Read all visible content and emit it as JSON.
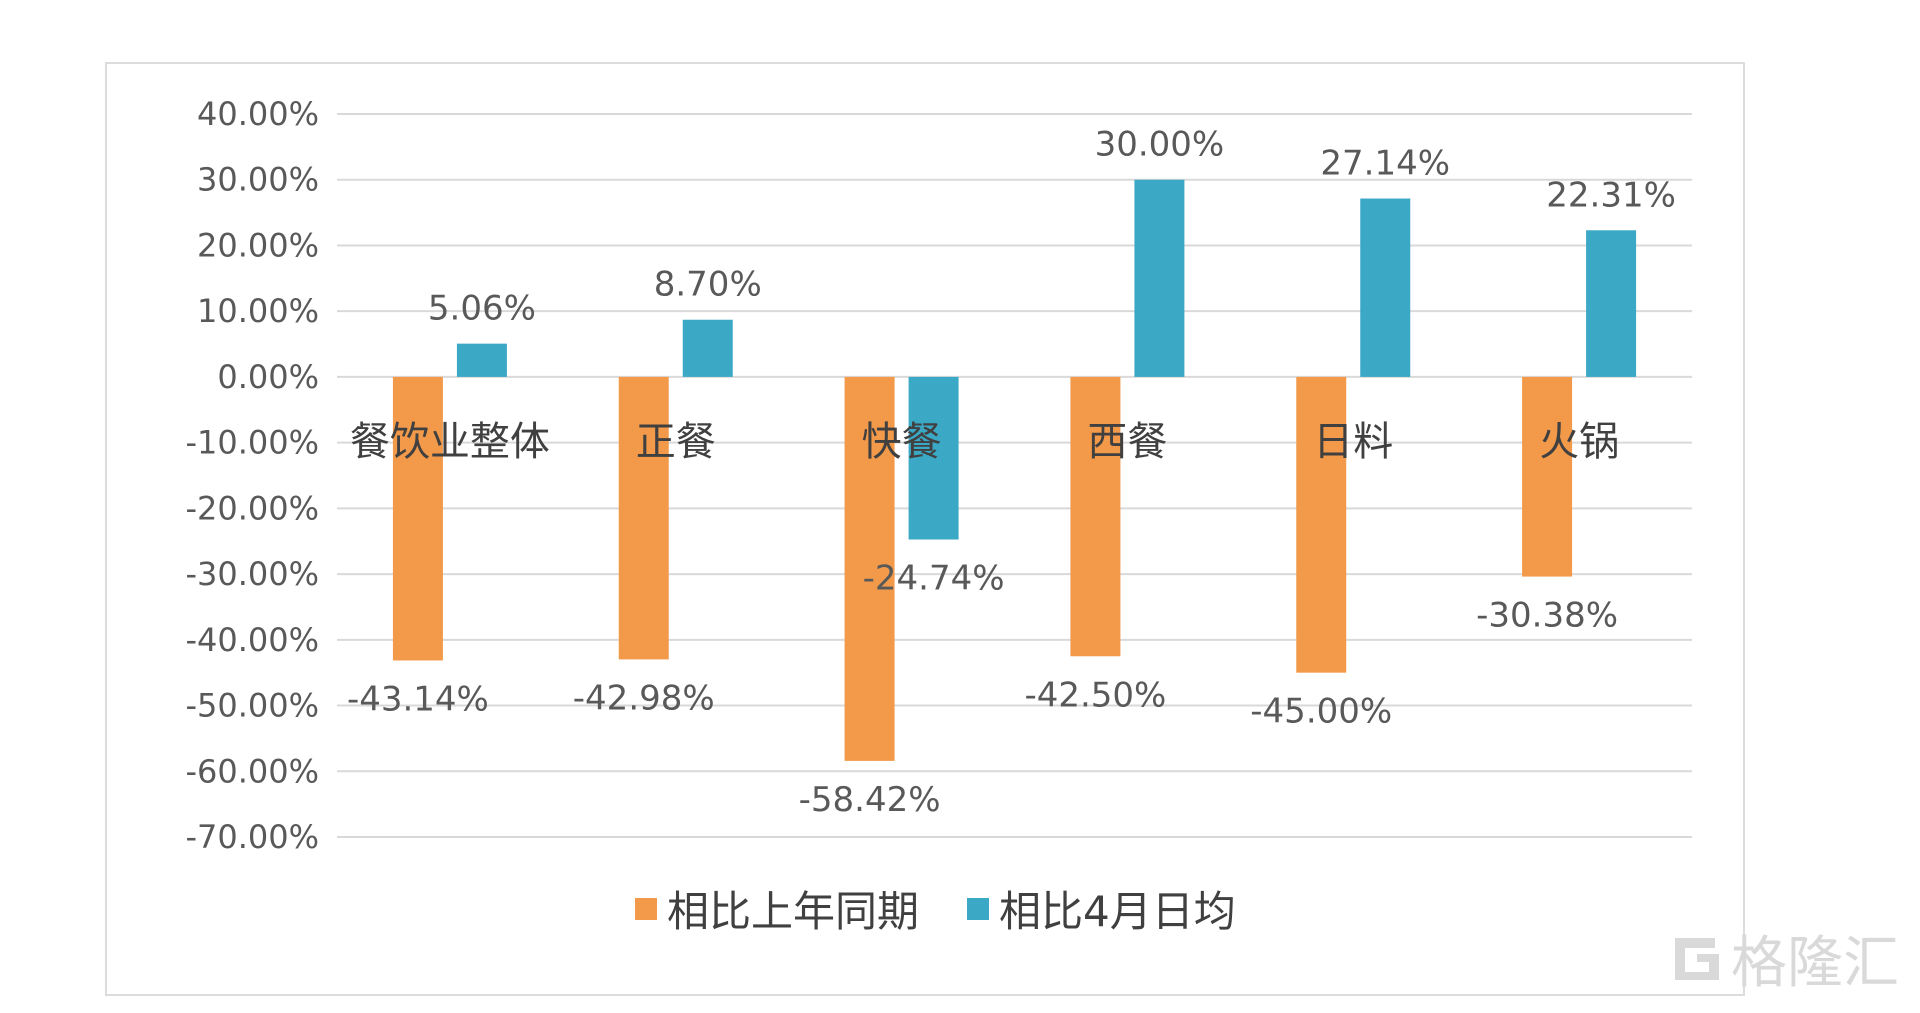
{
  "chart_data": {
    "type": "bar",
    "categories": [
      "餐饮业整体",
      "正餐",
      "快餐",
      "西餐",
      "日料",
      "火锅"
    ],
    "series": [
      {
        "name": "相比上年同期",
        "color": "#f39a4a",
        "values": [
          -43.14,
          -42.98,
          -58.42,
          -42.5,
          -45.0,
          -30.38
        ],
        "labels": [
          "-43.14%",
          "-42.98%",
          "-58.42%",
          "-42.50%",
          "-45.00%",
          "-30.38%"
        ]
      },
      {
        "name": "相比4月日均",
        "color": "#3ba9c6",
        "values": [
          5.06,
          8.7,
          -24.74,
          30.0,
          27.14,
          22.31
        ],
        "labels": [
          "5.06%",
          "8.70%",
          "-24.74%",
          "30.00%",
          "27.14%",
          "22.31%"
        ]
      }
    ],
    "ylim": [
      -70,
      40
    ],
    "yticks": [
      40,
      30,
      20,
      10,
      0,
      -10,
      -20,
      -30,
      -40,
      -50,
      -60,
      -70
    ],
    "ytick_labels": [
      "40.00%",
      "30.00%",
      "20.00%",
      "10.00%",
      "0.00%",
      "-10.00%",
      "-20.00%",
      "-30.00%",
      "-40.00%",
      "-50.00%",
      "-60.00%",
      "-70.00%"
    ],
    "grid": true,
    "legend_position": "bottom",
    "title": "",
    "xlabel": "",
    "ylabel": ""
  },
  "watermark": {
    "text": "格隆汇",
    "icon": "gelonghui-logo-icon"
  }
}
